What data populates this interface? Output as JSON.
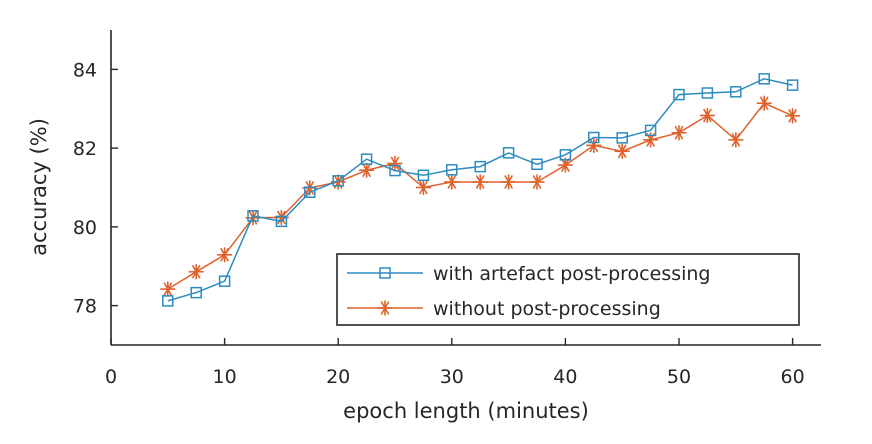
{
  "chart_data": {
    "type": "line",
    "xlabel": "epoch length (minutes)",
    "ylabel": "accuracy (%)",
    "xlim": [
      0,
      62.5
    ],
    "ylim": [
      77,
      85
    ],
    "xticks": [
      0,
      10,
      20,
      30,
      40,
      50,
      60
    ],
    "yticks": [
      78,
      80,
      82,
      84
    ],
    "x": [
      5,
      7.5,
      10,
      12.5,
      15,
      17.5,
      20,
      22.5,
      25,
      27.5,
      30,
      32.5,
      35,
      37.5,
      40,
      42.5,
      45,
      47.5,
      50,
      52.5,
      55,
      57.5,
      60
    ],
    "grid": false,
    "legend_position": "lower-right",
    "series": [
      {
        "name": "with artefact post-processing",
        "color": "#2e8bc0",
        "marker": "square",
        "values": [
          78.12,
          78.33,
          78.62,
          80.28,
          80.14,
          80.88,
          81.17,
          81.72,
          81.43,
          81.31,
          81.45,
          81.53,
          81.88,
          81.59,
          81.83,
          82.27,
          82.26,
          82.45,
          83.36,
          83.4,
          83.43,
          83.76,
          83.6
        ]
      },
      {
        "name": "without post-processing",
        "color": "#e0622b",
        "marker": "asterisk",
        "values": [
          78.42,
          78.86,
          79.29,
          80.23,
          80.24,
          80.99,
          81.14,
          81.44,
          81.61,
          81.0,
          81.14,
          81.14,
          81.14,
          81.14,
          81.57,
          82.07,
          81.92,
          82.21,
          82.39,
          82.83,
          82.21,
          83.14,
          82.82
        ]
      }
    ]
  }
}
